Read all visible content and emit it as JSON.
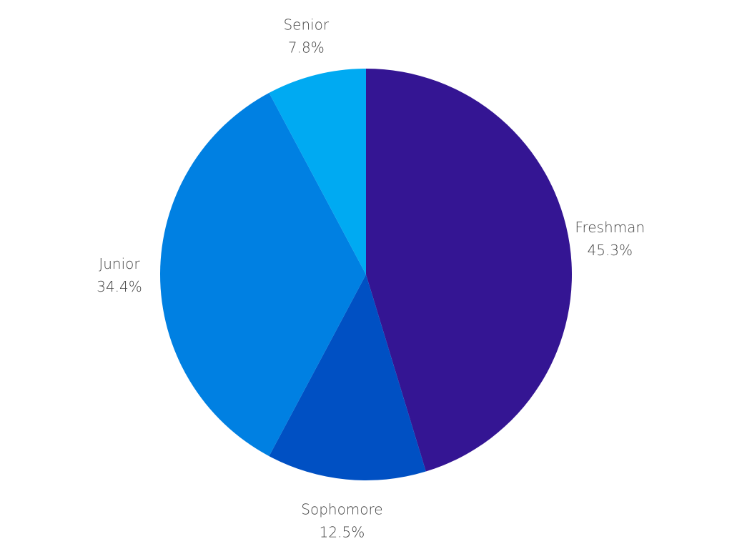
{
  "chart_data": {
    "type": "pie",
    "title": "",
    "start_angle_deg": 0,
    "direction": "clockwise",
    "slices": [
      {
        "label": "Freshman",
        "value": 45.3,
        "value_label": "45.3%",
        "color": "#341593"
      },
      {
        "label": "Sophomore",
        "value": 12.5,
        "value_label": "12.5%",
        "color": "#0050C3"
      },
      {
        "label": "Junior",
        "value": 34.4,
        "value_label": "34.4%",
        "color": "#0080E2"
      },
      {
        "label": "Senior",
        "value": 7.8,
        "value_label": "7.8%",
        "color": "#00AAF2"
      }
    ]
  }
}
